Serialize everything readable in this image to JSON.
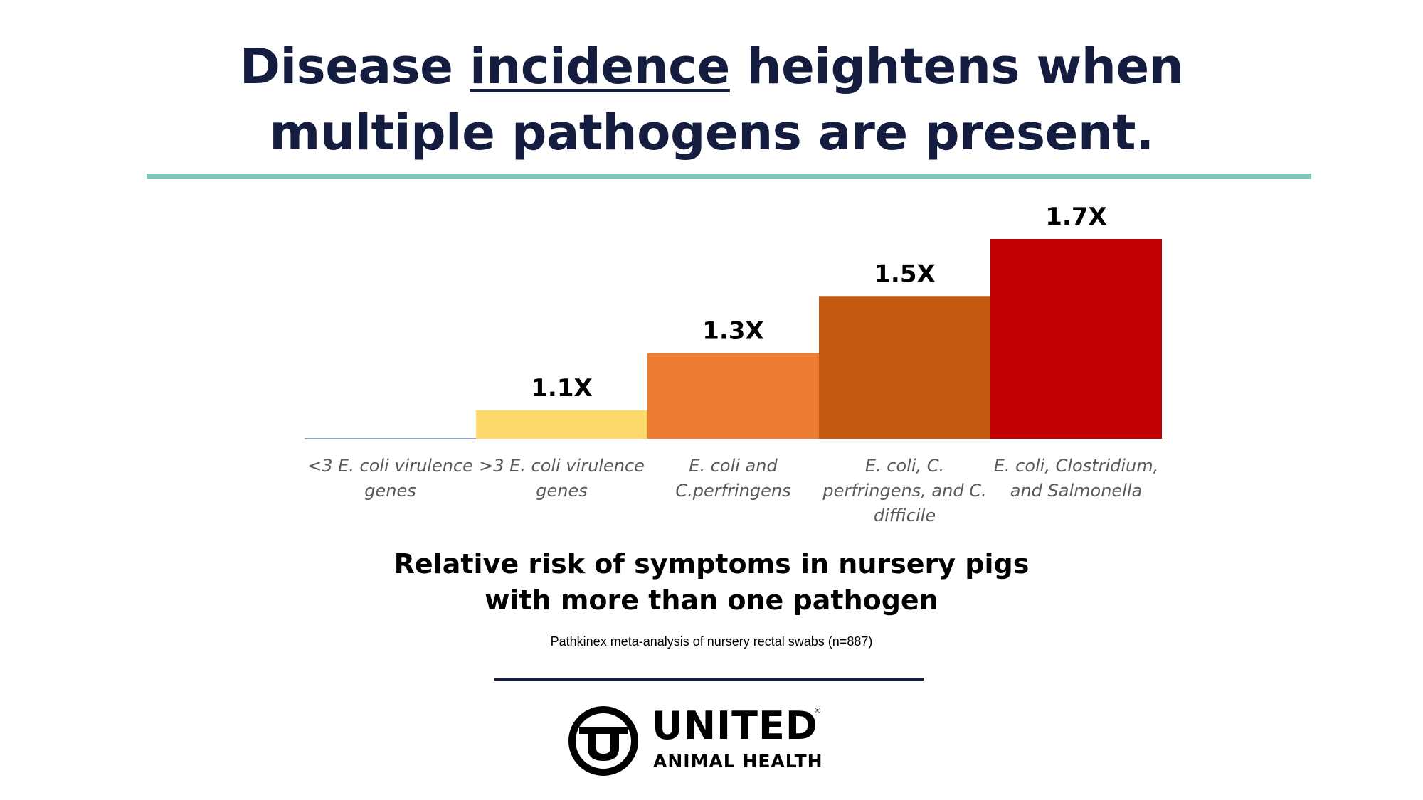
{
  "title": {
    "line1_before": "Disease",
    "line1_underlined": "incidence",
    "line1_after": "heightens when",
    "line2": "multiple pathogens are present."
  },
  "subtitle": {
    "line1": "Relative risk of symptoms in nursery pigs",
    "line2": "with more than one pathogen"
  },
  "source": "Pathkinex meta-analysis of nursery rectal swabs (n=887)",
  "logo": {
    "word": "UNITED",
    "registered": "®",
    "sub": "ANIMAL HEALTH"
  },
  "colors": {
    "title": "#141c3f",
    "teal_rule": "#7ec8bb",
    "navy_rule": "#141c3f",
    "baseline": "#8fa3d0",
    "category_text": "#595959"
  },
  "chart_data": {
    "type": "bar",
    "categories": [
      [
        "<3 E. coli virulence",
        "genes"
      ],
      [
        ">3 E. coli virulence",
        "genes"
      ],
      [
        "E. coli and",
        "C.perfringens"
      ],
      [
        "E. coli, C.",
        "perfringens, and C.",
        "difficile"
      ],
      [
        "E. coli, Clostridium,",
        "and Salmonella"
      ]
    ],
    "values": [
      1.0,
      1.1,
      1.3,
      1.5,
      1.7
    ],
    "labels": [
      "",
      "1.1X",
      "1.3X",
      "1.5X",
      "1.7X"
    ],
    "colors": [
      "#8fa3d0",
      "#fdd86b",
      "#ec7d33",
      "#c45911",
      "#c00000"
    ],
    "ylim": [
      1.0,
      1.7
    ],
    "title": "",
    "xlabel": "",
    "ylabel": "",
    "grid": false,
    "legend": "none"
  }
}
